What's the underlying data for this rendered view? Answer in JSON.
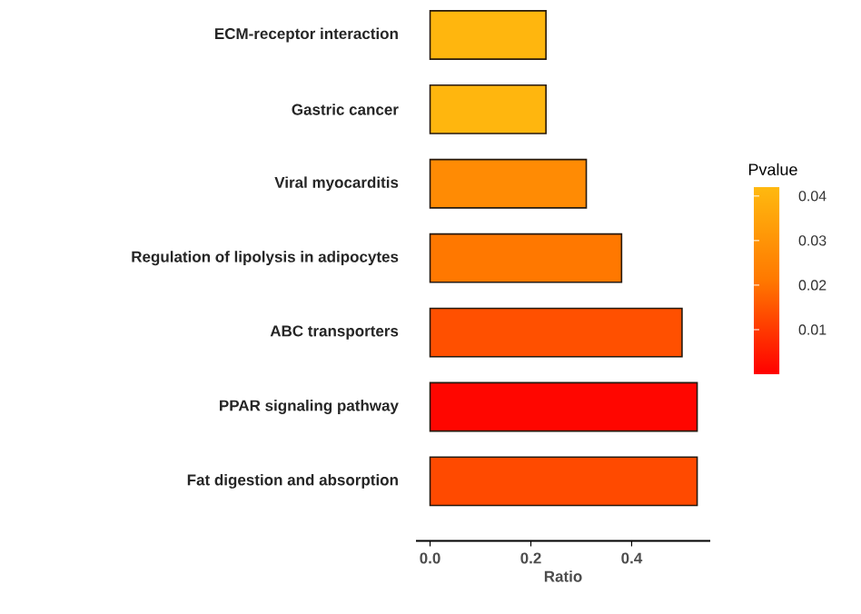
{
  "chart_data": {
    "type": "bar",
    "orientation": "horizontal",
    "categories": [
      "ECM-receptor interaction",
      "Gastric cancer",
      "Viral myocarditis",
      "Regulation of lipolysis in adipocytes",
      "ABC transporters",
      "PPAR signaling pathway",
      "Fat digestion and absorption"
    ],
    "values": [
      0.23,
      0.23,
      0.31,
      0.38,
      0.5,
      0.53,
      0.53
    ],
    "cvalues": [
      0.041,
      0.041,
      0.027,
      0.021,
      0.014,
      0.001,
      0.013
    ],
    "clim": [
      0.0,
      0.042
    ],
    "cticks": [
      0.01,
      0.02,
      0.03,
      0.04
    ],
    "clabel": "Pvalue",
    "xlabel": "Ratio",
    "xlim": [
      -0.028,
      0.556
    ],
    "xticks": [
      {
        "value": 0,
        "label": "0.0"
      },
      {
        "value": 0.2,
        "label": "0.2"
      },
      {
        "value": 0.4,
        "label": "0.4"
      }
    ]
  }
}
